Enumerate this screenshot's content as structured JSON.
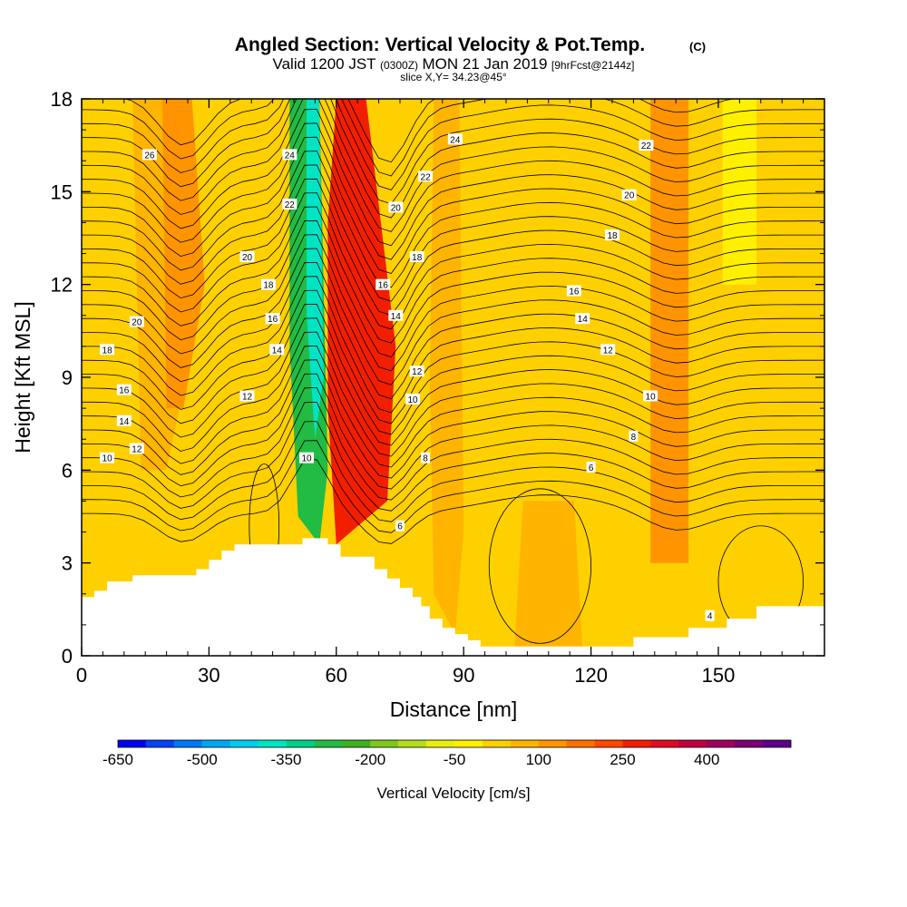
{
  "chart_data": {
    "type": "heatmap",
    "title": "Angled Section: Vertical Velocity & Pot.Temp.",
    "title_units": "(C)",
    "subtitle_valid": "Valid 1200 JST",
    "subtitle_utc": "(0300Z)",
    "subtitle_date": "MON 21 Jan 2019",
    "subtitle_fcst": "[9hrFcst@2144z]",
    "subtitle_slice": "slice X,Y= 34.23@45°",
    "xlabel": "Distance [nm]",
    "ylabel": "Height [Kft MSL]",
    "xlim": [
      0,
      175
    ],
    "ylim": [
      0,
      18
    ],
    "x_ticks": [
      "0",
      "30",
      "60",
      "90",
      "120",
      "150"
    ],
    "y_ticks": [
      "0",
      "3",
      "6",
      "9",
      "12",
      "15",
      "18"
    ],
    "colorbar_label": "Vertical Velocity [cm/s]",
    "colorbar_ticks": [
      "-650",
      "-500",
      "-350",
      "-200",
      "-50",
      "100",
      "250",
      "400"
    ],
    "colorbar_colors": [
      "#0000ee",
      "#0044f6",
      "#0078f8",
      "#00a6f4",
      "#00ccee",
      "#00e4c4",
      "#00cf8a",
      "#22bb44",
      "#3cb01e",
      "#7fc81a",
      "#b4dd1e",
      "#e8ef10",
      "#fff000",
      "#ffd000",
      "#ffb400",
      "#ff9400",
      "#ff7000",
      "#ff4800",
      "#f21e00",
      "#e00c24",
      "#c00040",
      "#a0005e",
      "#7c0074",
      "#5a008a"
    ],
    "velocity_bands": [
      {
        "x": 15,
        "value": 75
      },
      {
        "x": 22,
        "value": 125
      },
      {
        "x": 45,
        "value": 20
      },
      {
        "x": 52,
        "value": -280
      },
      {
        "x": 54,
        "value": -380
      },
      {
        "x": 66,
        "value": 260
      },
      {
        "x": 86,
        "value": 80
      },
      {
        "x": 110,
        "value": 60
      },
      {
        "x": 138,
        "value": 110
      },
      {
        "x": 155,
        "value": -30
      }
    ],
    "theta_contour_labels": [
      {
        "x": 16,
        "y": 16.2,
        "text": "26"
      },
      {
        "x": 49,
        "y": 16.2,
        "text": "24"
      },
      {
        "x": 88,
        "y": 16.7,
        "text": "24"
      },
      {
        "x": 133,
        "y": 16.5,
        "text": "22"
      },
      {
        "x": 49,
        "y": 14.6,
        "text": "22"
      },
      {
        "x": 81,
        "y": 15.5,
        "text": "22"
      },
      {
        "x": 74,
        "y": 14.5,
        "text": "20"
      },
      {
        "x": 129,
        "y": 14.9,
        "text": "20"
      },
      {
        "x": 39,
        "y": 12.9,
        "text": "20"
      },
      {
        "x": 13,
        "y": 10.8,
        "text": "20"
      },
      {
        "x": 125,
        "y": 13.6,
        "text": "18"
      },
      {
        "x": 79,
        "y": 12.9,
        "text": "18"
      },
      {
        "x": 44,
        "y": 12.0,
        "text": "18"
      },
      {
        "x": 6,
        "y": 9.9,
        "text": "18"
      },
      {
        "x": 71,
        "y": 12.0,
        "text": "16"
      },
      {
        "x": 116,
        "y": 11.8,
        "text": "16"
      },
      {
        "x": 45,
        "y": 10.9,
        "text": "16"
      },
      {
        "x": 10,
        "y": 8.6,
        "text": "16"
      },
      {
        "x": 74,
        "y": 11.0,
        "text": "14"
      },
      {
        "x": 118,
        "y": 10.9,
        "text": "14"
      },
      {
        "x": 46,
        "y": 9.9,
        "text": "14"
      },
      {
        "x": 10,
        "y": 7.6,
        "text": "14"
      },
      {
        "x": 79,
        "y": 9.2,
        "text": "12"
      },
      {
        "x": 124,
        "y": 9.9,
        "text": "12"
      },
      {
        "x": 39,
        "y": 8.4,
        "text": "12"
      },
      {
        "x": 13,
        "y": 6.7,
        "text": "12"
      },
      {
        "x": 78,
        "y": 8.3,
        "text": "10"
      },
      {
        "x": 134,
        "y": 8.4,
        "text": "10"
      },
      {
        "x": 53,
        "y": 6.4,
        "text": "10"
      },
      {
        "x": 6,
        "y": 6.4,
        "text": "10"
      },
      {
        "x": 81,
        "y": 6.4,
        "text": "8"
      },
      {
        "x": 130,
        "y": 7.1,
        "text": "8"
      },
      {
        "x": 120,
        "y": 6.1,
        "text": "6"
      },
      {
        "x": 75,
        "y": 4.2,
        "text": "6"
      },
      {
        "x": 148,
        "y": 1.3,
        "text": "4"
      }
    ],
    "terrain": [
      [
        0,
        1.9
      ],
      [
        3,
        1.9
      ],
      [
        3,
        2.1
      ],
      [
        6,
        2.1
      ],
      [
        6,
        2.4
      ],
      [
        12,
        2.4
      ],
      [
        12,
        2.6
      ],
      [
        27,
        2.6
      ],
      [
        27,
        2.8
      ],
      [
        30,
        2.8
      ],
      [
        30,
        3.1
      ],
      [
        33,
        3.1
      ],
      [
        33,
        3.4
      ],
      [
        36,
        3.4
      ],
      [
        36,
        3.6
      ],
      [
        52,
        3.6
      ],
      [
        52,
        3.8
      ],
      [
        58,
        3.8
      ],
      [
        58,
        3.6
      ],
      [
        61,
        3.6
      ],
      [
        61,
        3.2
      ],
      [
        69,
        3.2
      ],
      [
        69,
        2.8
      ],
      [
        72,
        2.8
      ],
      [
        72,
        2.5
      ],
      [
        75,
        2.5
      ],
      [
        75,
        2.2
      ],
      [
        78,
        2.2
      ],
      [
        78,
        1.9
      ],
      [
        80,
        1.9
      ],
      [
        80,
        1.6
      ],
      [
        82,
        1.6
      ],
      [
        82,
        1.2
      ],
      [
        85,
        1.2
      ],
      [
        85,
        0.9
      ],
      [
        88,
        0.9
      ],
      [
        88,
        0.7
      ],
      [
        91,
        0.7
      ],
      [
        91,
        0.5
      ],
      [
        94,
        0.5
      ],
      [
        94,
        0.3
      ],
      [
        130,
        0.3
      ],
      [
        130,
        0.6
      ],
      [
        143,
        0.6
      ],
      [
        143,
        0.9
      ],
      [
        152,
        0.9
      ],
      [
        152,
        1.2
      ],
      [
        159,
        1.2
      ],
      [
        159,
        1.6
      ],
      [
        175,
        1.6
      ]
    ]
  }
}
